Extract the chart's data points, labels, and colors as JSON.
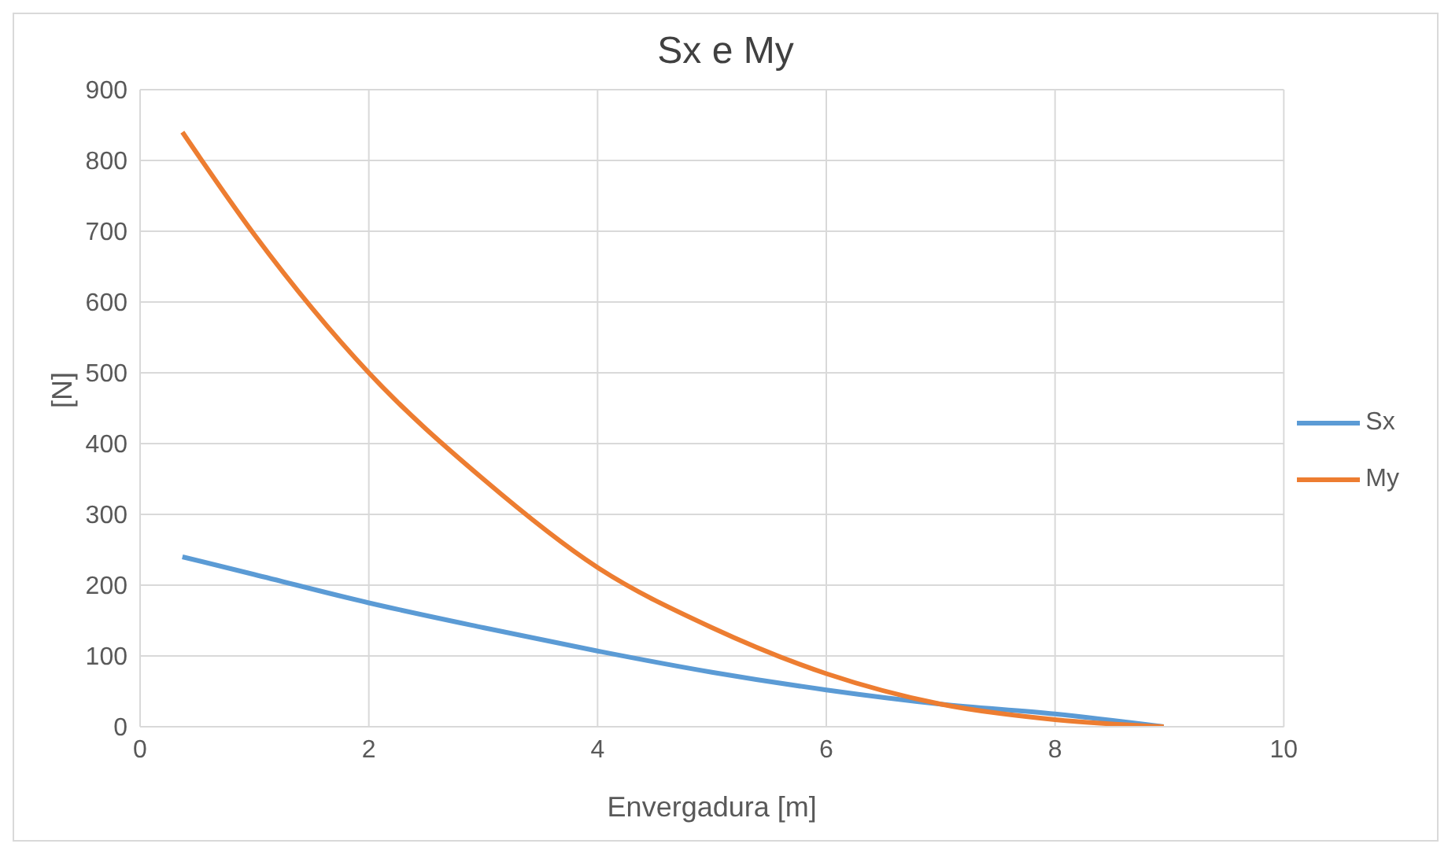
{
  "chart_data": {
    "type": "line",
    "title": "Sx e My",
    "xlabel": "Envergadura [m]",
    "ylabel": "[N]",
    "x": [
      0.37,
      1,
      2,
      3,
      4,
      5,
      6,
      7,
      8,
      8.95
    ],
    "series": [
      {
        "name": "Sx",
        "color": "#5b9bd5",
        "values": [
          240,
          215,
          175,
          140,
          107,
          77,
          52,
          32,
          18,
          0
        ]
      },
      {
        "name": "My",
        "color": "#ed7d31",
        "values": [
          840,
          695,
          500,
          350,
          225,
          140,
          75,
          32,
          10,
          0
        ]
      }
    ],
    "xlim": [
      0,
      10
    ],
    "xticks": [
      0,
      2,
      4,
      6,
      8,
      10
    ],
    "ylim": [
      0,
      900
    ],
    "yticks": [
      0,
      100,
      200,
      300,
      400,
      500,
      600,
      700,
      800,
      900
    ],
    "grid": true,
    "legend": "right",
    "marker": "none",
    "line_style": "solid"
  }
}
